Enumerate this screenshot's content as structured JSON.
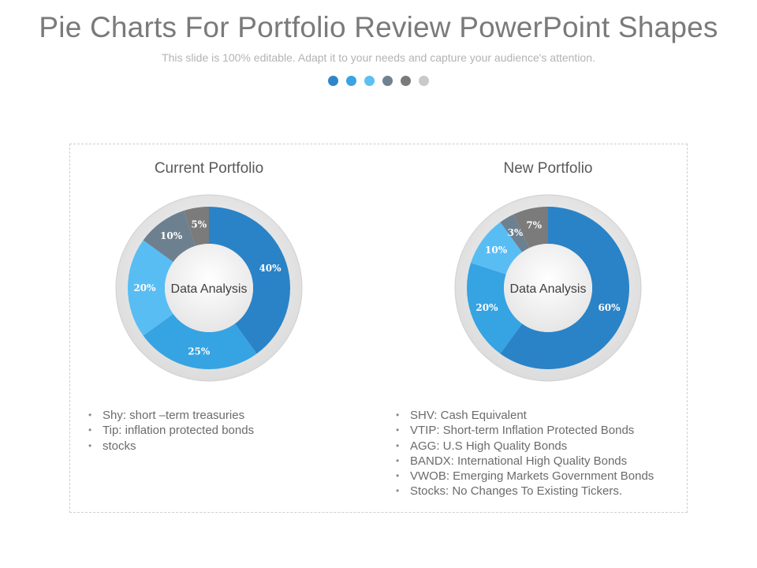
{
  "header": {
    "title": "Pie Charts For Portfolio Review PowerPoint Shapes",
    "subtitle": "This slide is 100% editable. Adapt it to your needs and capture your audience's attention."
  },
  "nav_dots": [
    {
      "color": "#2e86c8"
    },
    {
      "color": "#3aa3e3"
    },
    {
      "color": "#5bc0f2"
    },
    {
      "color": "#6f8291"
    },
    {
      "color": "#7a7a7a"
    },
    {
      "color": "#c9c9c9"
    }
  ],
  "chart_data": [
    {
      "type": "donut",
      "title": "Current Portfolio",
      "center_label": "Data Analysis",
      "slices": [
        {
          "label": "40%",
          "value": 40,
          "color": "#2a83c7"
        },
        {
          "label": "25%",
          "value": 25,
          "color": "#36a3e2"
        },
        {
          "label": "20%",
          "value": 20,
          "color": "#58bdf3"
        },
        {
          "label": "10%",
          "value": 10,
          "color": "#6d808f"
        },
        {
          "label": "5%",
          "value": 5,
          "color": "#7b7b7b"
        }
      ],
      "legend": [
        "Shy: short –term treasuries",
        "Tip: inflation protected bonds",
        "stocks"
      ]
    },
    {
      "type": "donut",
      "title": "New Portfolio",
      "center_label": "Data Analysis",
      "slices": [
        {
          "label": "60%",
          "value": 60,
          "color": "#2a83c7"
        },
        {
          "label": "20%",
          "value": 20,
          "color": "#36a3e2"
        },
        {
          "label": "10%",
          "value": 10,
          "color": "#58bdf3"
        },
        {
          "label": "3%",
          "value": 3,
          "color": "#6d808f"
        },
        {
          "label": "7%",
          "value": 7,
          "color": "#7b7b7b"
        }
      ],
      "legend": [
        "SHV: Cash Equivalent",
        "VTIP: Short-term Inflation Protected Bonds",
        "AGG: U.S High Quality Bonds",
        "BANDX: International High Quality Bonds",
        "VWOB: Emerging Markets Government Bonds",
        "Stocks: No Changes To Existing Tickers."
      ]
    }
  ]
}
